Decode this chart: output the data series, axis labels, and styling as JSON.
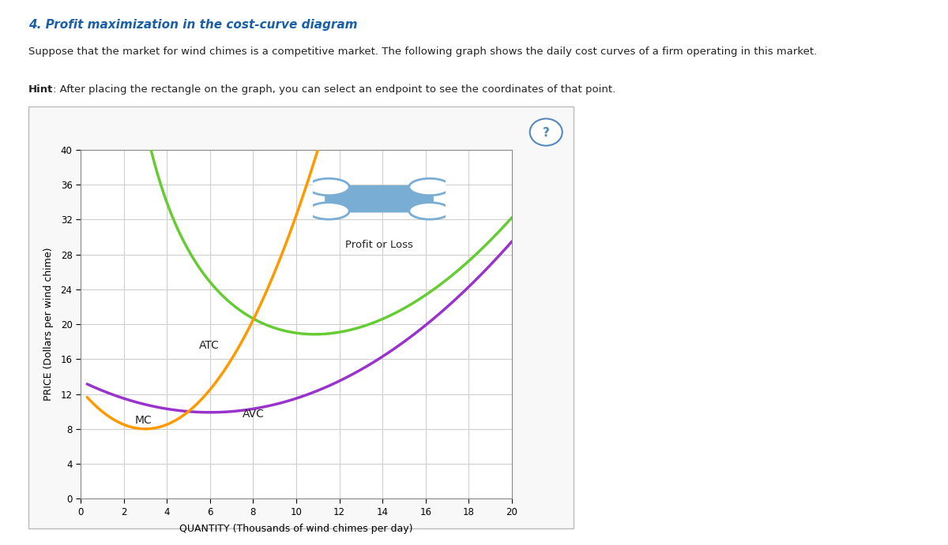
{
  "title_line1": "4. Profit maximization in the cost-curve diagram",
  "subtitle": "Suppose that the market for wind chimes is a competitive market. The following graph shows the daily cost curves of a firm operating in this market.",
  "hint_bold": "Hint",
  "hint_rest": ": After placing the rectangle on the graph, you can select an endpoint to see the coordinates of that point.",
  "xlabel": "QUANTITY (Thousands of wind chimes per day)",
  "ylabel": "PRICE (Dollars per wind chime)",
  "xlim": [
    0,
    20
  ],
  "ylim": [
    0,
    40
  ],
  "xticks": [
    0,
    2,
    4,
    6,
    8,
    10,
    12,
    14,
    16,
    18,
    20
  ],
  "yticks": [
    0,
    4,
    8,
    12,
    16,
    20,
    24,
    28,
    32,
    36,
    40
  ],
  "atc_color": "#66cc33",
  "avc_color": "#9933cc",
  "mc_color": "#ff9900",
  "background_color": "#ffffff",
  "grid_color": "#cccccc",
  "legend_label": "Profit or Loss",
  "legend_icon_color": "#7aadd4",
  "fig_width": 12.0,
  "fig_height": 6.91,
  "title_color": "#1a5fa8",
  "text_color": "#222222"
}
